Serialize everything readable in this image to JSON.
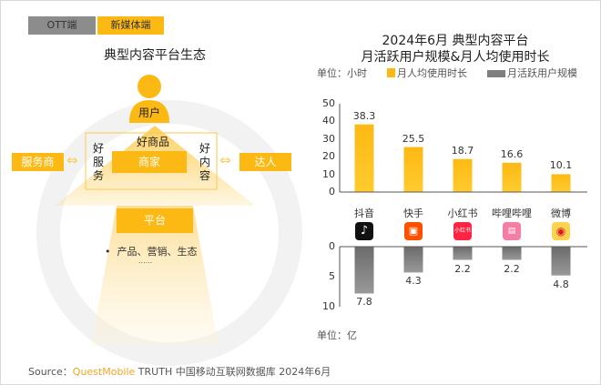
{
  "tabs": {
    "ott": "OTT端",
    "new_media": "新媒体端"
  },
  "diagram": {
    "title": "典型内容平台生态",
    "user": "用户",
    "good_goods": "好商品",
    "good_service": "好服务",
    "good_content": "好内容",
    "merchant": "商家",
    "service_provider": "服务商",
    "influencer": "达人",
    "platform": "平台",
    "platform_bullet": "产品、营销、生态",
    "ellipsis": "......"
  },
  "chart_data": {
    "type": "bar",
    "title_line1": "2024年6月 典型内容平台",
    "title_line2": "月活跃用户规模&月人均使用时长",
    "categories": [
      "抖音",
      "快手",
      "小红书",
      "哔哩哔哩",
      "微博"
    ],
    "series": [
      {
        "name": "月人均使用时长",
        "unit": "单位：小时",
        "color": "#fdb913",
        "values": [
          38.3,
          25.5,
          18.7,
          16.6,
          10.1
        ],
        "ylim": [
          0,
          50
        ],
        "ticks": [
          "50",
          "40",
          "30",
          "20",
          "10",
          "0"
        ]
      },
      {
        "name": "月活跃用户规模",
        "unit": "单位：亿",
        "color": "#7f7f7f",
        "values": [
          7.8,
          4.3,
          2.2,
          2.2,
          4.8
        ],
        "ylim": [
          0,
          10
        ],
        "ticks": [
          "0",
          "5",
          "10"
        ],
        "direction": "down"
      }
    ],
    "icons": [
      "douyin-icon",
      "kuaishou-icon",
      "xiaohongshu-icon",
      "bilibili-icon",
      "weibo-icon"
    ],
    "icon_text": {
      "xiaohongshu": "小红书"
    }
  },
  "source": {
    "prefix": "Source：",
    "brand": "QuestMobile",
    "rest": " TRUTH 中国移动互联网数据库 2024年6月"
  },
  "colors": {
    "accent": "#fdb913",
    "gray": "#7f7f7f"
  }
}
